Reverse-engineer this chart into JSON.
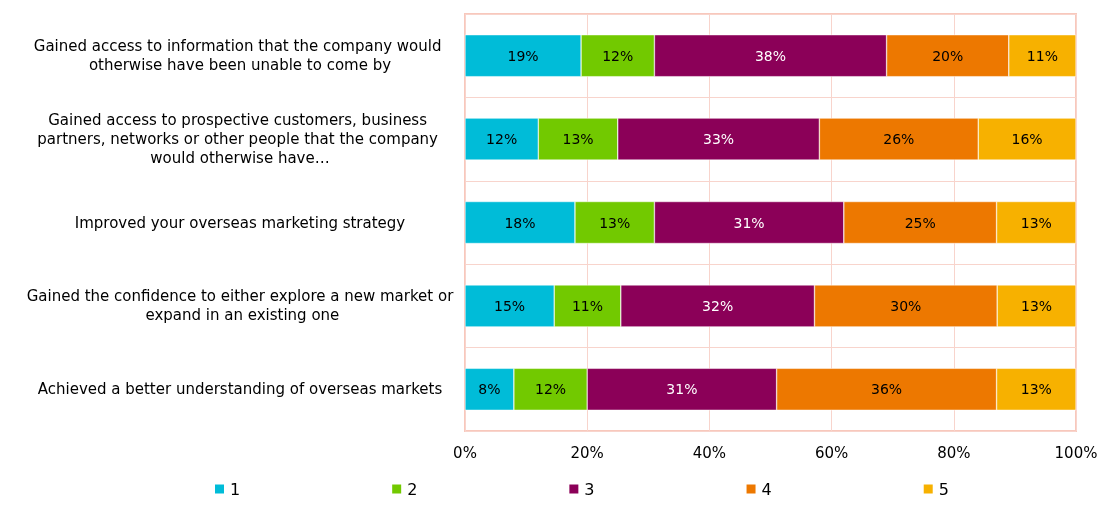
{
  "chart_data": {
    "type": "bar",
    "orientation": "horizontal",
    "stacked": true,
    "categories": [
      "Gained access to information that the company would otherwise have been unable to come by",
      "Gained access to prospective customers, business partners, networks or other people that the company would otherwise have…",
      "Improved your overseas marketing strategy",
      "Gained the confidence to either explore a new market or expand in an existing one",
      "Achieved a better understanding of overseas markets"
    ],
    "series": [
      {
        "name": "1",
        "color": "#00bcd8",
        "values": [
          19,
          12,
          18,
          14.6,
          8
        ],
        "value_labels": [
          "19%",
          "12%",
          "18%",
          "15%",
          "8%"
        ]
      },
      {
        "name": "2",
        "color": "#72c900",
        "values": [
          12,
          13,
          13,
          10.9,
          12
        ],
        "value_labels": [
          "12%",
          "13%",
          "13%",
          "11%",
          "12%"
        ]
      },
      {
        "name": "3",
        "color": "#8b0058",
        "values": [
          38,
          33,
          31,
          31.7,
          31
        ],
        "value_labels": [
          "38%",
          "33%",
          "31%",
          "32%",
          "31%"
        ]
      },
      {
        "name": "4",
        "color": "#ed7800",
        "values": [
          20,
          26,
          25,
          29.9,
          36
        ],
        "value_labels": [
          "20%",
          "26%",
          "25%",
          "30%",
          "36%"
        ]
      },
      {
        "name": "5",
        "color": "#f7b100",
        "values": [
          11,
          16,
          13,
          12.9,
          13
        ],
        "value_labels": [
          "11%",
          "16%",
          "13%",
          "13%",
          "13%"
        ]
      }
    ],
    "xlim": [
      0,
      100
    ],
    "xticks": [
      {
        "value": 0,
        "label": "0%"
      },
      {
        "value": 20,
        "label": "20%"
      },
      {
        "value": 40,
        "label": "40%"
      },
      {
        "value": 60,
        "label": "60%"
      },
      {
        "value": 80,
        "label": "80%"
      },
      {
        "value": 100,
        "label": "100%"
      }
    ],
    "grid": true,
    "legend": "bottom"
  }
}
